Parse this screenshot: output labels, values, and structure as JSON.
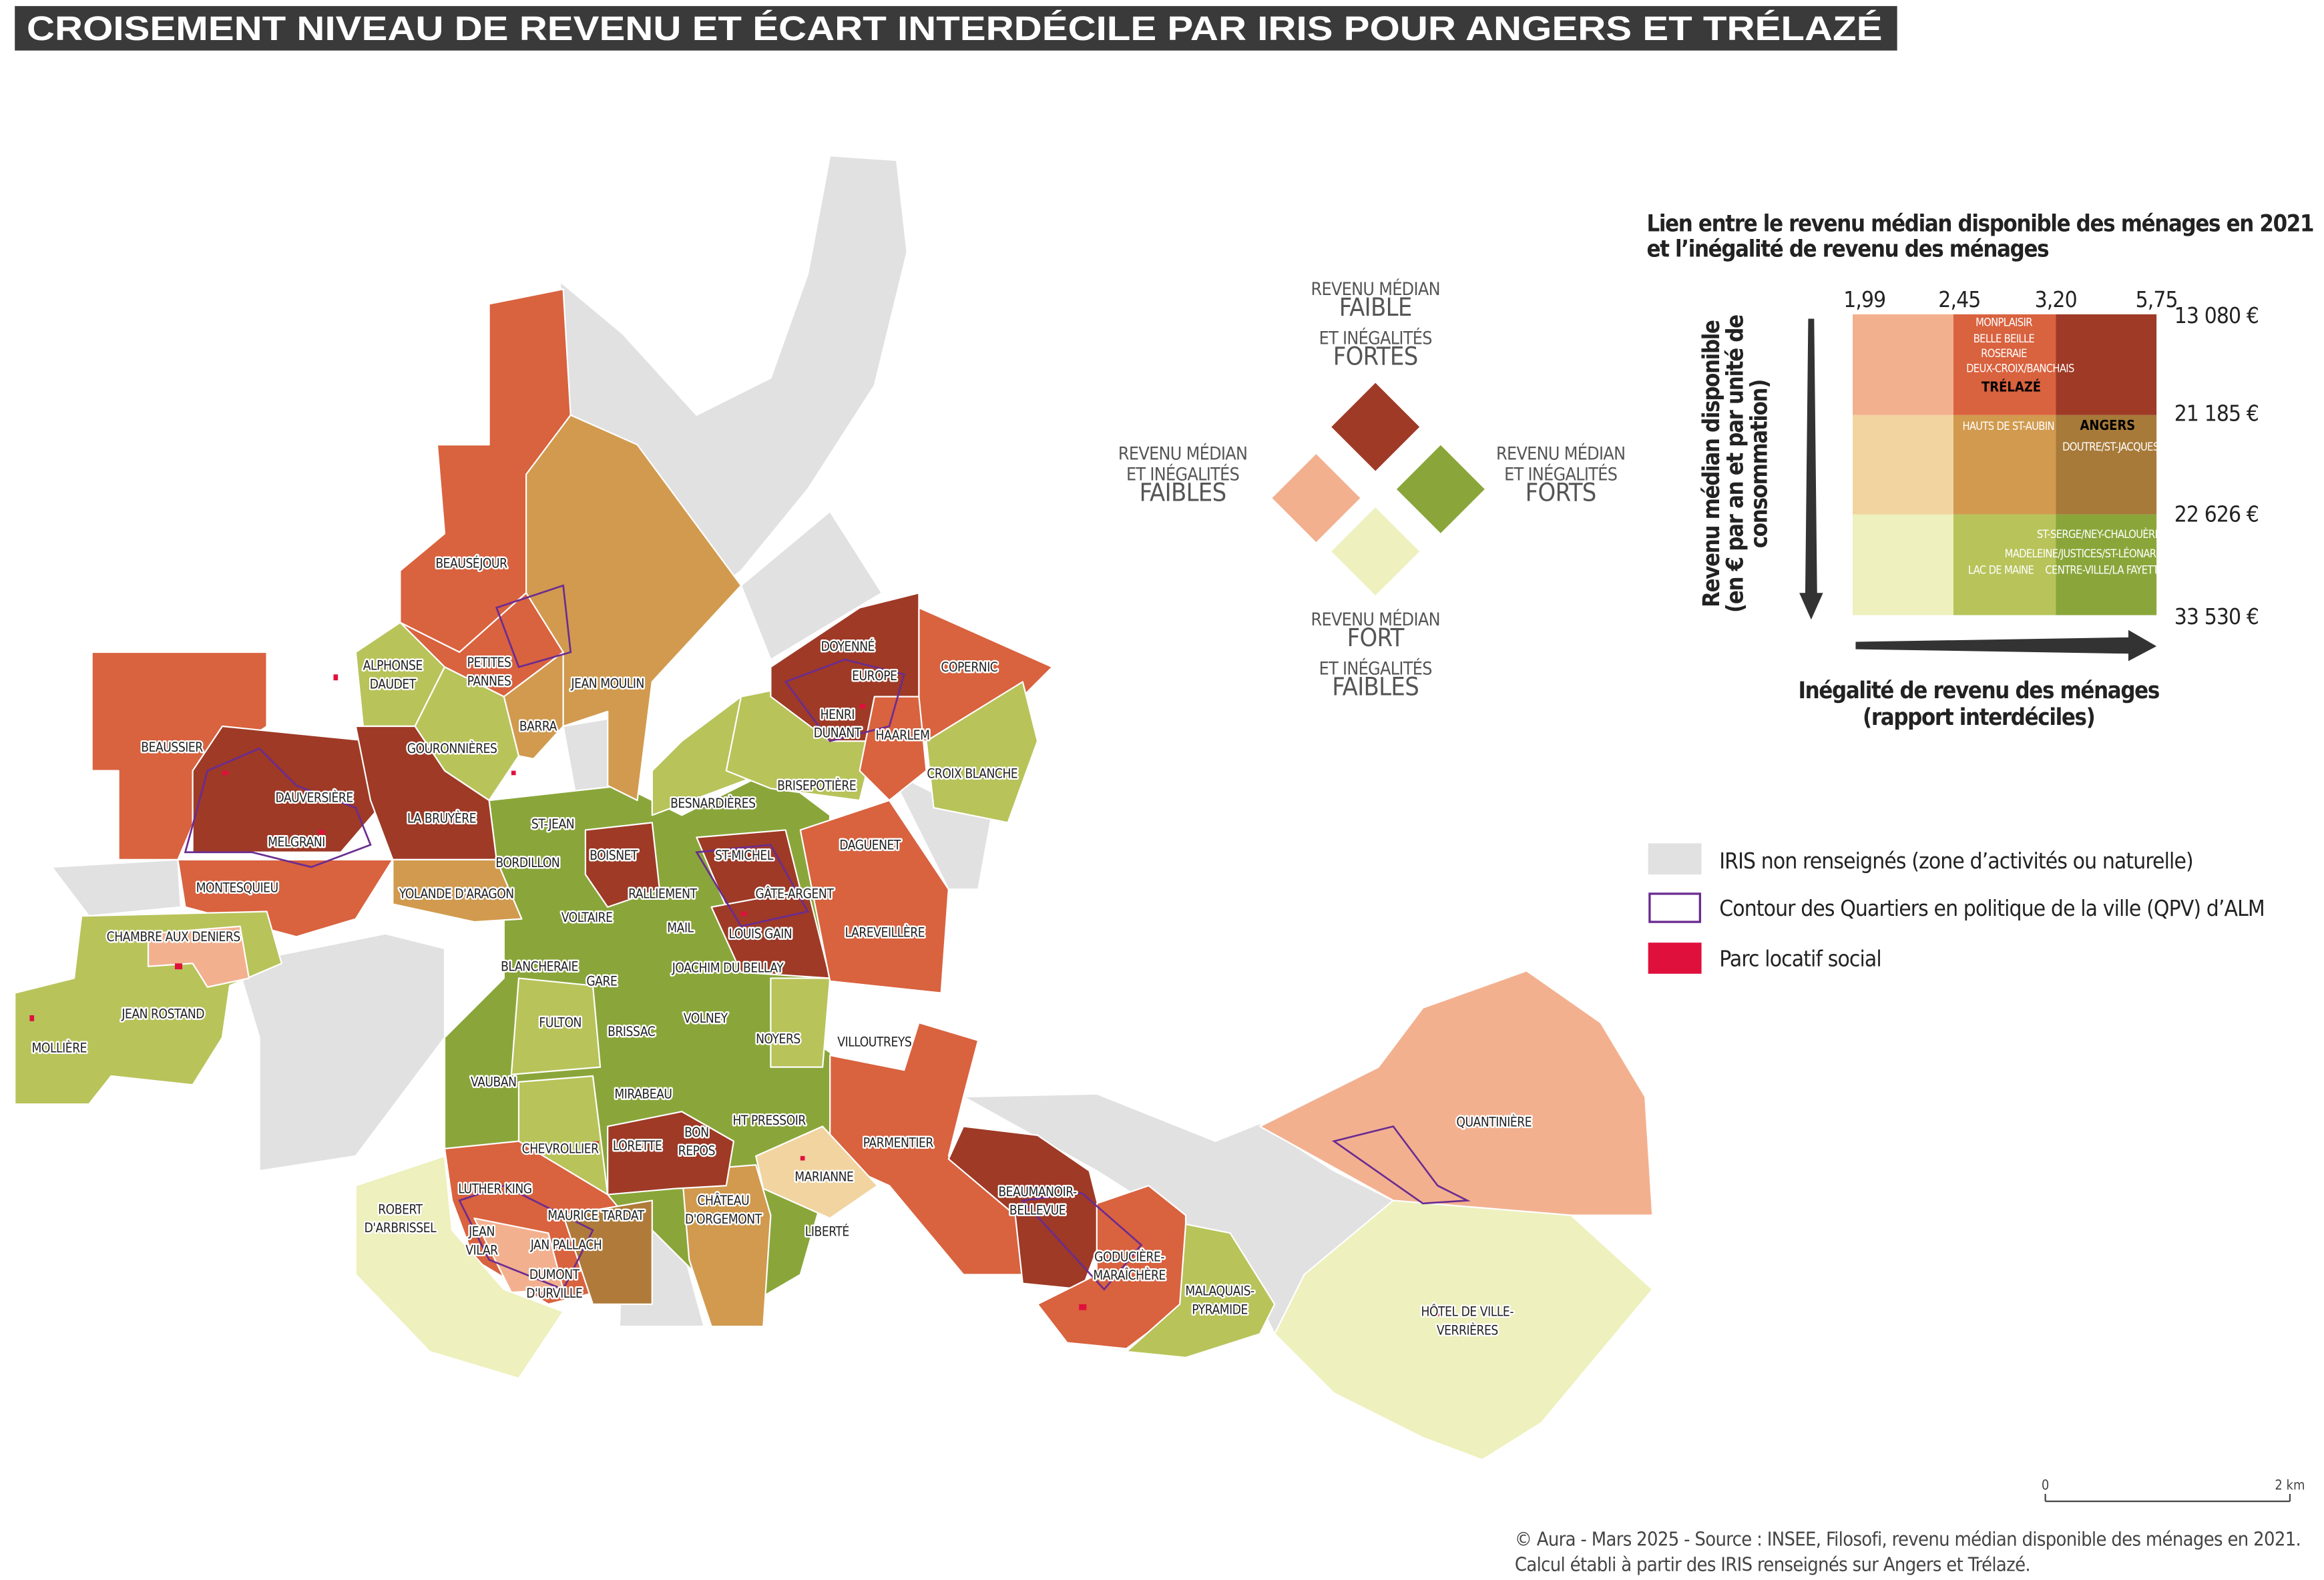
{
  "title": "CROISEMENT NIVEAU DE REVENU ET ÉCART INTERDÉCILE PAR IRIS POUR ANGERS ET TRÉLAZÉ",
  "diamond_legend": [
    [
      "REVENU MÉDIAN",
      "FAIBLE",
      "ET INÉGALITÉS",
      "FORTES"
    ],
    [
      "REVENU MÉDIAN",
      "ET INÉGALITÉS",
      "FAIBLES"
    ],
    [
      "REVENU MÉDIAN",
      "ET INÉGALITÉS",
      "FORTS"
    ],
    [
      "REVENU MÉDIAN",
      "FORT",
      "ET INÉGALITÉS",
      "FAIBLES"
    ]
  ],
  "bivariate": {
    "title": [
      "Lien entre le revenu médian disponible des ménages en 2021",
      "et l’inégalité de revenu des ménages"
    ],
    "x_ticks": [
      "1,99",
      "2,45",
      "3,20",
      "5,75"
    ],
    "y_ticks": [
      "13 080 €",
      "21 185 €",
      "22 626 €",
      "33 530 €"
    ],
    "y_axis_title": [
      "Revenu médian disponible",
      "(en € par an et par unité de",
      "consommation)"
    ],
    "x_axis_title": [
      "Inégalité de revenu des ménages",
      "(rapport interdéciles)"
    ],
    "cell_labels": [
      "MONPLAISIR",
      "BELLE BEILLE",
      "ROSERAIE",
      "DEUX-CROIX/BANCHAIS",
      "TRÉLAZÉ",
      "HAUTS DE ST-AUBIN",
      "ANGERS",
      "DOUTRE/ST-JACQUES",
      "ST-SERGE/NEY-CHALOUÈRE",
      "MADELEINE/JUSTICES/ST-LÉONARD",
      "LAC DE MAINE",
      "CENTRE-VILLE/LA FAYETTE"
    ]
  },
  "legend": [
    "IRIS non renseignés (zone d’activités ou naturelle)",
    "Contour des Quartiers en politique de la ville (QPV) d’ALM",
    "Parc locatif social"
  ],
  "scale": [
    "0",
    "2 km"
  ],
  "source": [
    "© Aura - Mars 2025  - Source : INSEE, Filosofi, revenu médian disponible des ménages en 2021.",
    "Calcul établi à partir des IRIS renseignés sur Angers et Trélazé."
  ],
  "map_labels": [
    [
      "BEAUSÉJOUR"
    ],
    [
      "ALPHONSE",
      "DAUDET"
    ],
    [
      "PETITES",
      "PANNES"
    ],
    [
      "JEAN MOULIN"
    ],
    [
      "BARRA"
    ],
    [
      "GOURONNIÈRES"
    ],
    [
      "BEAUSSIER"
    ],
    [
      "DAUVERSIÈRE"
    ],
    [
      "LA BRUYÈRE"
    ],
    [
      "MELGRANI"
    ],
    [
      "MONTESQUIEU"
    ],
    [
      "YOLANDE D'ARAGON"
    ],
    [
      "ST-JEAN"
    ],
    [
      "BORDILLON"
    ],
    [
      "BOISNET"
    ],
    [
      "RALLIEMENT"
    ],
    [
      "ST-MICHEL"
    ],
    [
      "GÂTE-ARGENT"
    ],
    [
      "DAGUENET"
    ],
    [
      "BESNARDIÈRES"
    ],
    [
      "BRISEPOTIÈRE"
    ],
    [
      "DOYENNÉ"
    ],
    [
      "EUROPE"
    ],
    [
      "HENRI",
      "DUNANT"
    ],
    [
      "HAARLEM"
    ],
    [
      "COPERNIC"
    ],
    [
      "CROIX BLANCHE"
    ],
    [
      "VOLTAIRE"
    ],
    [
      "MAIL"
    ],
    [
      "LOUIS GAIN"
    ],
    [
      "LAREVEILLÈRE"
    ],
    [
      "CHAMBRE AUX DENIERS"
    ],
    [
      "BLANCHERAIE"
    ],
    [
      "GARE"
    ],
    [
      "JOACHIM DU BELLAY"
    ],
    [
      "JEAN ROSTAND"
    ],
    [
      "MOLLIÈRE"
    ],
    [
      "FULTON"
    ],
    [
      "BRISSAC"
    ],
    [
      "VOLNEY"
    ],
    [
      "NOYERS"
    ],
    [
      "VILLOUTREYS"
    ],
    [
      "VAUBAN"
    ],
    [
      "MIRABEAU"
    ],
    [
      "HT PRESSOIR"
    ],
    [
      "CHEVROLLIER"
    ],
    [
      "LORETTE"
    ],
    [
      "BON",
      "REPOS"
    ],
    [
      "PARMENTIER"
    ],
    [
      "QUANTINIÈRE"
    ],
    [
      "MARIANNE"
    ],
    [
      "LUTHER KING"
    ],
    [
      "ROBERT",
      "D'ARBRISSEL"
    ],
    [
      "BEAUMANOIR-",
      "BELLEVUE"
    ],
    [
      "MAURICE TARDAT"
    ],
    [
      "CHÂTEAU",
      "D'ORGEMONT"
    ],
    [
      "JEAN",
      "VILAR"
    ],
    [
      "JAN PALLACH"
    ],
    [
      "LIBERTÉ"
    ],
    [
      "GODUCIÈRE-",
      "MARAÎCHÈRE"
    ],
    [
      "DUMONT",
      "D'URVILLE"
    ],
    [
      "MALAQUAIS-",
      "PYRAMIDE"
    ],
    [
      "HÔTEL DE VILLE-",
      "VERRIÈRES"
    ]
  ]
}
